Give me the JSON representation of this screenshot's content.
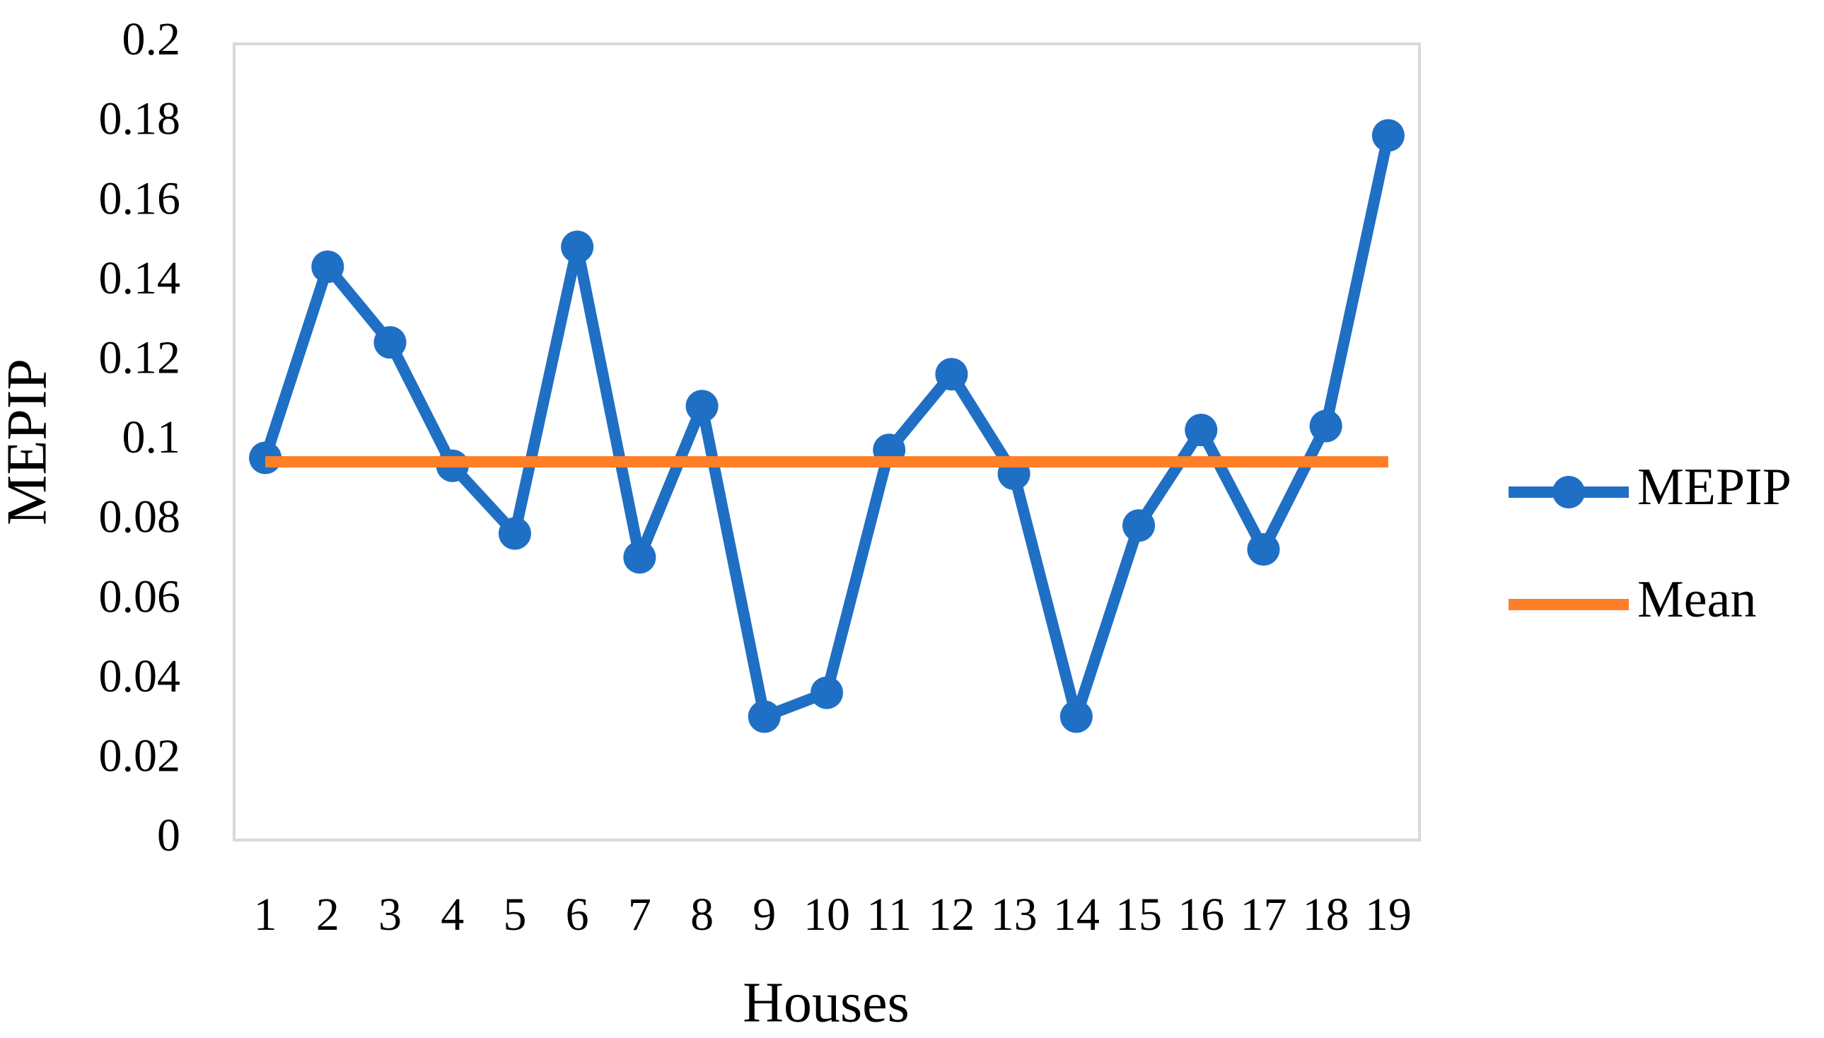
{
  "chart_data": {
    "type": "line",
    "x_label": "Houses",
    "y_label": "MEPIP",
    "categories": [
      "1",
      "2",
      "3",
      "4",
      "5",
      "6",
      "7",
      "8",
      "9",
      "10",
      "11",
      "12",
      "13",
      "14",
      "15",
      "16",
      "17",
      "18",
      "19"
    ],
    "series": [
      {
        "name": "MEPIP",
        "color": "#1f6fc5",
        "markers": true,
        "values": [
          0.096,
          0.144,
          0.125,
          0.094,
          0.077,
          0.149,
          0.071,
          0.109,
          0.031,
          0.037,
          0.098,
          0.117,
          0.092,
          0.031,
          0.079,
          0.103,
          0.073,
          0.104,
          0.177
        ]
      },
      {
        "name": "Mean",
        "color": "#ff7f27",
        "markers": false,
        "values": [
          0.095,
          0.095,
          0.095,
          0.095,
          0.095,
          0.095,
          0.095,
          0.095,
          0.095,
          0.095,
          0.095,
          0.095,
          0.095,
          0.095,
          0.095,
          0.095,
          0.095,
          0.095,
          0.095
        ]
      }
    ],
    "ylim": [
      0,
      0.2
    ],
    "yticks": [
      0,
      0.02,
      0.04,
      0.06,
      0.08,
      0.1,
      0.12,
      0.14,
      0.16,
      0.18,
      0.2
    ],
    "grid": false,
    "legend": "right"
  }
}
